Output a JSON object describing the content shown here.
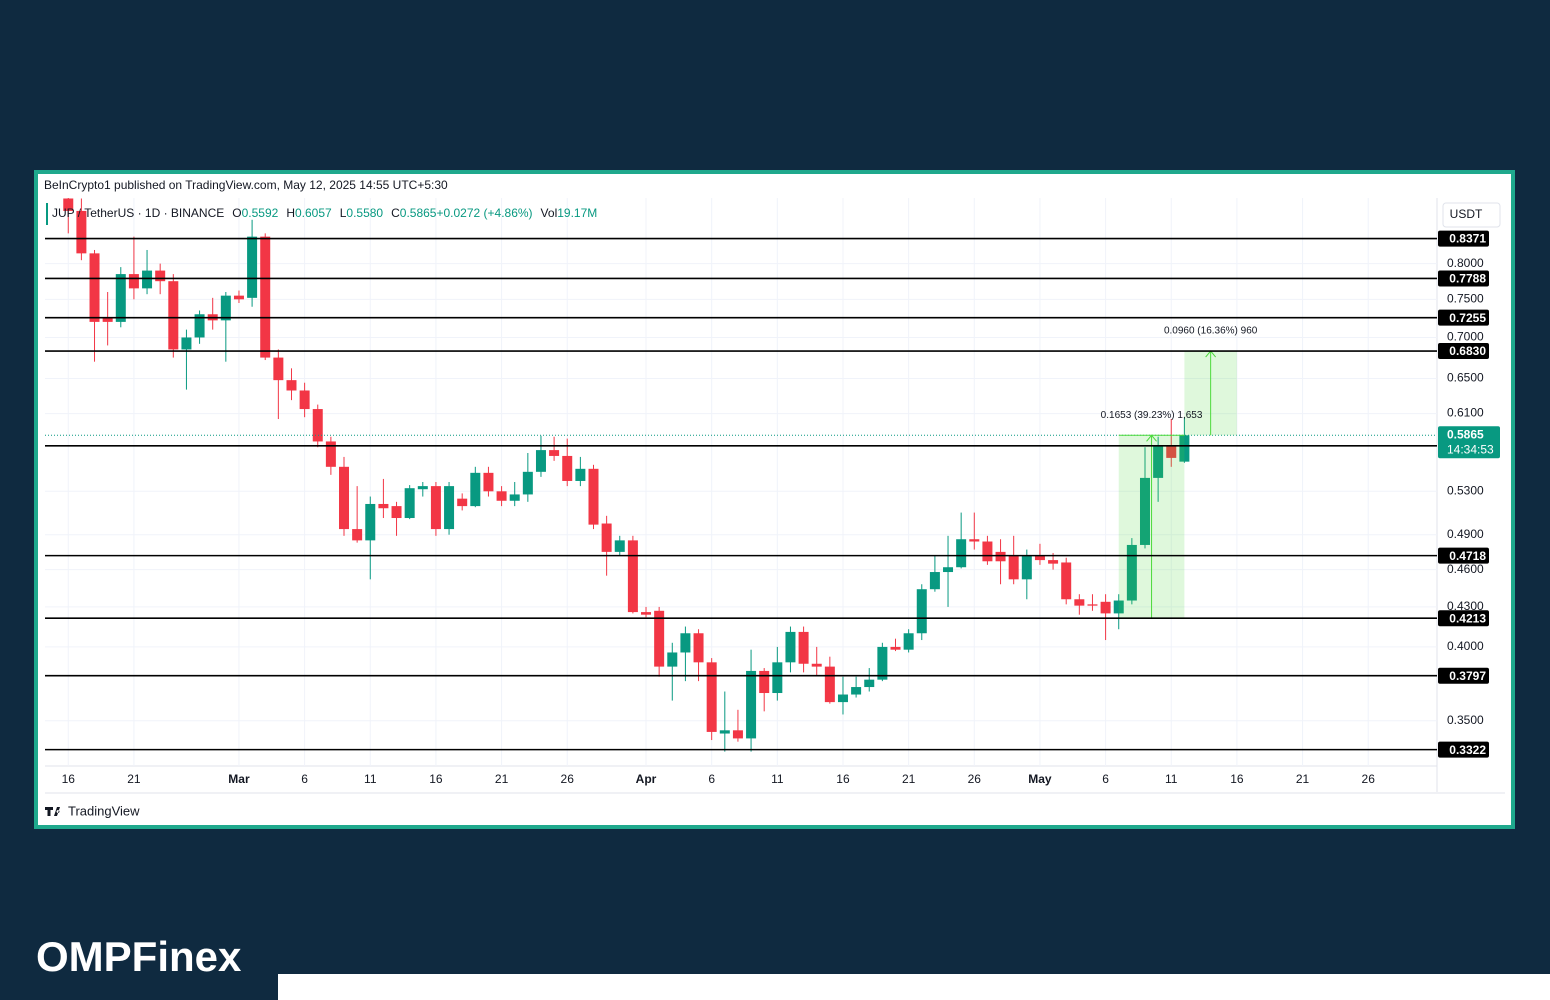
{
  "header": {
    "published": "BeInCrypto1 published on TradingView.com, May 12, 2025 14:55 UTC+5:30"
  },
  "chart_data": {
    "type": "candlestick",
    "symbol": "JUP / TetherUS · 1D · BINANCE",
    "legend": [
      {
        "key": "O",
        "value": "0.5592"
      },
      {
        "key": "H",
        "value": "0.6057"
      },
      {
        "key": "L",
        "value": "0.5580"
      },
      {
        "key": "C",
        "value": "0.5865"
      },
      {
        "key": "",
        "value": "+0.0272 (+4.86%)"
      },
      {
        "key": "Vol",
        "value": "19.17M"
      }
    ],
    "currency": "USDT",
    "countdown": "14:34:53",
    "up_color": "#089981",
    "down_color": "#f23645",
    "log_y": true,
    "grid": true,
    "x": [
      "2025-02-16",
      "2025-02-17",
      "2025-02-18",
      "2025-02-19",
      "2025-02-20",
      "2025-02-21",
      "2025-02-22",
      "2025-02-23",
      "2025-02-24",
      "2025-02-25",
      "2025-02-26",
      "2025-02-27",
      "2025-02-28",
      "2025-03-01",
      "2025-03-02",
      "2025-03-03",
      "2025-03-04",
      "2025-03-05",
      "2025-03-06",
      "2025-03-07",
      "2025-03-08",
      "2025-03-09",
      "2025-03-10",
      "2025-03-11",
      "2025-03-12",
      "2025-03-13",
      "2025-03-14",
      "2025-03-15",
      "2025-03-16",
      "2025-03-17",
      "2025-03-18",
      "2025-03-19",
      "2025-03-20",
      "2025-03-21",
      "2025-03-22",
      "2025-03-23",
      "2025-03-24",
      "2025-03-25",
      "2025-03-26",
      "2025-03-27",
      "2025-03-28",
      "2025-03-29",
      "2025-03-30",
      "2025-03-31",
      "2025-04-01",
      "2025-04-02",
      "2025-04-03",
      "2025-04-04",
      "2025-04-05",
      "2025-04-06",
      "2025-04-07",
      "2025-04-08",
      "2025-04-09",
      "2025-04-10",
      "2025-04-11",
      "2025-04-12",
      "2025-04-13",
      "2025-04-14",
      "2025-04-15",
      "2025-04-16",
      "2025-04-17",
      "2025-04-18",
      "2025-04-19",
      "2025-04-20",
      "2025-04-21",
      "2025-04-22",
      "2025-04-23",
      "2025-04-24",
      "2025-04-25",
      "2025-04-26",
      "2025-04-27",
      "2025-04-28",
      "2025-04-29",
      "2025-04-30",
      "2025-05-01",
      "2025-05-02",
      "2025-05-03",
      "2025-05-04",
      "2025-05-05",
      "2025-05-06",
      "2025-05-07",
      "2025-05-08",
      "2025-05-09",
      "2025-05-10",
      "2025-05-11",
      "2025-05-12"
    ],
    "open": [
      0.9,
      0.88,
      0.815,
      0.725,
      0.72,
      0.785,
      0.765,
      0.79,
      0.775,
      0.685,
      0.7,
      0.73,
      0.722,
      0.755,
      0.752,
      0.84,
      0.675,
      0.648,
      0.636,
      0.615,
      0.58,
      0.554,
      0.495,
      0.485,
      0.518,
      0.516,
      0.505,
      0.532,
      0.535,
      0.495,
      0.523,
      0.516,
      0.548,
      0.53,
      0.521,
      0.527,
      0.549,
      0.571,
      0.565,
      0.54,
      0.552,
      0.5,
      0.475,
      0.485,
      0.426,
      0.427,
      0.386,
      0.396,
      0.41,
      0.389,
      0.342,
      0.344,
      0.339,
      0.383,
      0.368,
      0.389,
      0.411,
      0.388,
      0.386,
      0.362,
      0.367,
      0.372,
      0.377,
      0.4,
      0.398,
      0.41,
      0.444,
      0.458,
      0.462,
      0.486,
      0.484,
      0.475,
      0.472,
      0.452,
      0.472,
      0.468,
      0.466,
      0.436,
      0.432,
      0.434,
      0.425,
      0.435,
      0.481,
      0.543,
      0.576,
      0.5592
    ],
    "high": [
      0.91,
      0.9,
      0.82,
      0.76,
      0.795,
      0.84,
      0.82,
      0.8,
      0.785,
      0.71,
      0.735,
      0.752,
      0.76,
      0.762,
      0.866,
      0.845,
      0.685,
      0.662,
      0.645,
      0.62,
      0.585,
      0.564,
      0.535,
      0.525,
      0.542,
      0.52,
      0.536,
      0.539,
      0.539,
      0.539,
      0.528,
      0.554,
      0.554,
      0.535,
      0.539,
      0.568,
      0.586,
      0.585,
      0.583,
      0.564,
      0.556,
      0.507,
      0.489,
      0.489,
      0.43,
      0.43,
      0.403,
      0.415,
      0.413,
      0.392,
      0.369,
      0.357,
      0.398,
      0.385,
      0.4,
      0.415,
      0.415,
      0.4,
      0.393,
      0.379,
      0.379,
      0.385,
      0.403,
      0.406,
      0.413,
      0.448,
      0.472,
      0.489,
      0.51,
      0.51,
      0.489,
      0.486,
      0.489,
      0.477,
      0.482,
      0.474,
      0.47,
      0.44,
      0.44,
      0.44,
      0.44,
      0.487,
      0.574,
      0.585,
      0.604,
      0.6057
    ],
    "low": [
      0.845,
      0.805,
      0.67,
      0.69,
      0.713,
      0.75,
      0.757,
      0.757,
      0.675,
      0.637,
      0.692,
      0.71,
      0.67,
      0.745,
      0.74,
      0.672,
      0.604,
      0.625,
      0.606,
      0.574,
      0.546,
      0.489,
      0.483,
      0.452,
      0.505,
      0.489,
      0.504,
      0.525,
      0.489,
      0.49,
      0.512,
      0.515,
      0.525,
      0.516,
      0.516,
      0.52,
      0.544,
      0.56,
      0.535,
      0.535,
      0.495,
      0.455,
      0.472,
      0.425,
      0.422,
      0.379,
      0.363,
      0.376,
      0.376,
      0.338,
      0.331,
      0.337,
      0.331,
      0.356,
      0.363,
      0.382,
      0.382,
      0.38,
      0.361,
      0.354,
      0.365,
      0.369,
      0.376,
      0.397,
      0.396,
      0.405,
      0.442,
      0.43,
      0.461,
      0.477,
      0.464,
      0.448,
      0.448,
      0.436,
      0.464,
      0.46,
      0.432,
      0.424,
      0.427,
      0.405,
      0.413,
      0.432,
      0.478,
      0.52,
      0.554,
      0.558
    ],
    "close": [
      0.88,
      0.815,
      0.72,
      0.72,
      0.785,
      0.765,
      0.79,
      0.775,
      0.685,
      0.7,
      0.73,
      0.722,
      0.755,
      0.75,
      0.84,
      0.675,
      0.648,
      0.636,
      0.615,
      0.58,
      0.554,
      0.495,
      0.485,
      0.518,
      0.514,
      0.505,
      0.533,
      0.535,
      0.495,
      0.535,
      0.516,
      0.548,
      0.53,
      0.521,
      0.527,
      0.549,
      0.571,
      0.565,
      0.54,
      0.552,
      0.499,
      0.475,
      0.485,
      0.426,
      0.424,
      0.386,
      0.396,
      0.41,
      0.389,
      0.343,
      0.344,
      0.339,
      0.383,
      0.368,
      0.389,
      0.411,
      0.388,
      0.386,
      0.362,
      0.367,
      0.372,
      0.377,
      0.4,
      0.398,
      0.41,
      0.444,
      0.458,
      0.462,
      0.486,
      0.484,
      0.467,
      0.467,
      0.452,
      0.472,
      0.468,
      0.465,
      0.436,
      0.431,
      0.431,
      0.425,
      0.435,
      0.481,
      0.543,
      0.576,
      0.563,
      0.5865
    ],
    "xlim": [
      "2025-02-14",
      "2025-06-01"
    ],
    "xticks": [
      {
        "value": "2025-02-16",
        "label": "16"
      },
      {
        "value": "2025-02-21",
        "label": "21"
      },
      {
        "value": "2025-03-01",
        "label": "Mar"
      },
      {
        "value": "2025-03-06",
        "label": "6"
      },
      {
        "value": "2025-03-11",
        "label": "11"
      },
      {
        "value": "2025-03-16",
        "label": "16"
      },
      {
        "value": "2025-03-21",
        "label": "21"
      },
      {
        "value": "2025-03-26",
        "label": "26"
      },
      {
        "value": "2025-04-01",
        "label": "Apr"
      },
      {
        "value": "2025-04-06",
        "label": "6"
      },
      {
        "value": "2025-04-11",
        "label": "11"
      },
      {
        "value": "2025-04-16",
        "label": "16"
      },
      {
        "value": "2025-04-21",
        "label": "21"
      },
      {
        "value": "2025-04-26",
        "label": "26"
      },
      {
        "value": "2025-05-01",
        "label": "May"
      },
      {
        "value": "2025-05-06",
        "label": "6"
      },
      {
        "value": "2025-05-11",
        "label": "11"
      },
      {
        "value": "2025-05-16",
        "label": "16"
      },
      {
        "value": "2025-05-21",
        "label": "21"
      },
      {
        "value": "2025-05-26",
        "label": "26"
      }
    ],
    "ylim": [
      0.3225,
      0.9
    ],
    "yticks": [
      {
        "value": 0.8,
        "label": "0.8000"
      },
      {
        "value": 0.75,
        "label": "0.7500"
      },
      {
        "value": 0.7,
        "label": "0.7000"
      },
      {
        "value": 0.65,
        "label": "0.6500"
      },
      {
        "value": 0.61,
        "label": "0.6100"
      },
      {
        "value": 0.53,
        "label": "0.5300"
      },
      {
        "value": 0.49,
        "label": "0.4900"
      },
      {
        "value": 0.46,
        "label": "0.4600"
      },
      {
        "value": 0.43,
        "label": "0.4300"
      },
      {
        "value": 0.4,
        "label": "0.4000"
      },
      {
        "value": 0.35,
        "label": "0.3500"
      }
    ],
    "levels": [
      0.8371,
      0.7788,
      0.7255,
      {
        "value": 0.683,
        "label": "0.6830"
      },
      0.5754,
      0.4718,
      0.4213,
      0.3797,
      0.3322
    ],
    "measures": [
      "0.1653 (39.23%) 1,653",
      "0.0960 (16.36%) 960"
    ]
  },
  "footer": {
    "platform": "TradingView",
    "logo": "OMPFinex"
  }
}
